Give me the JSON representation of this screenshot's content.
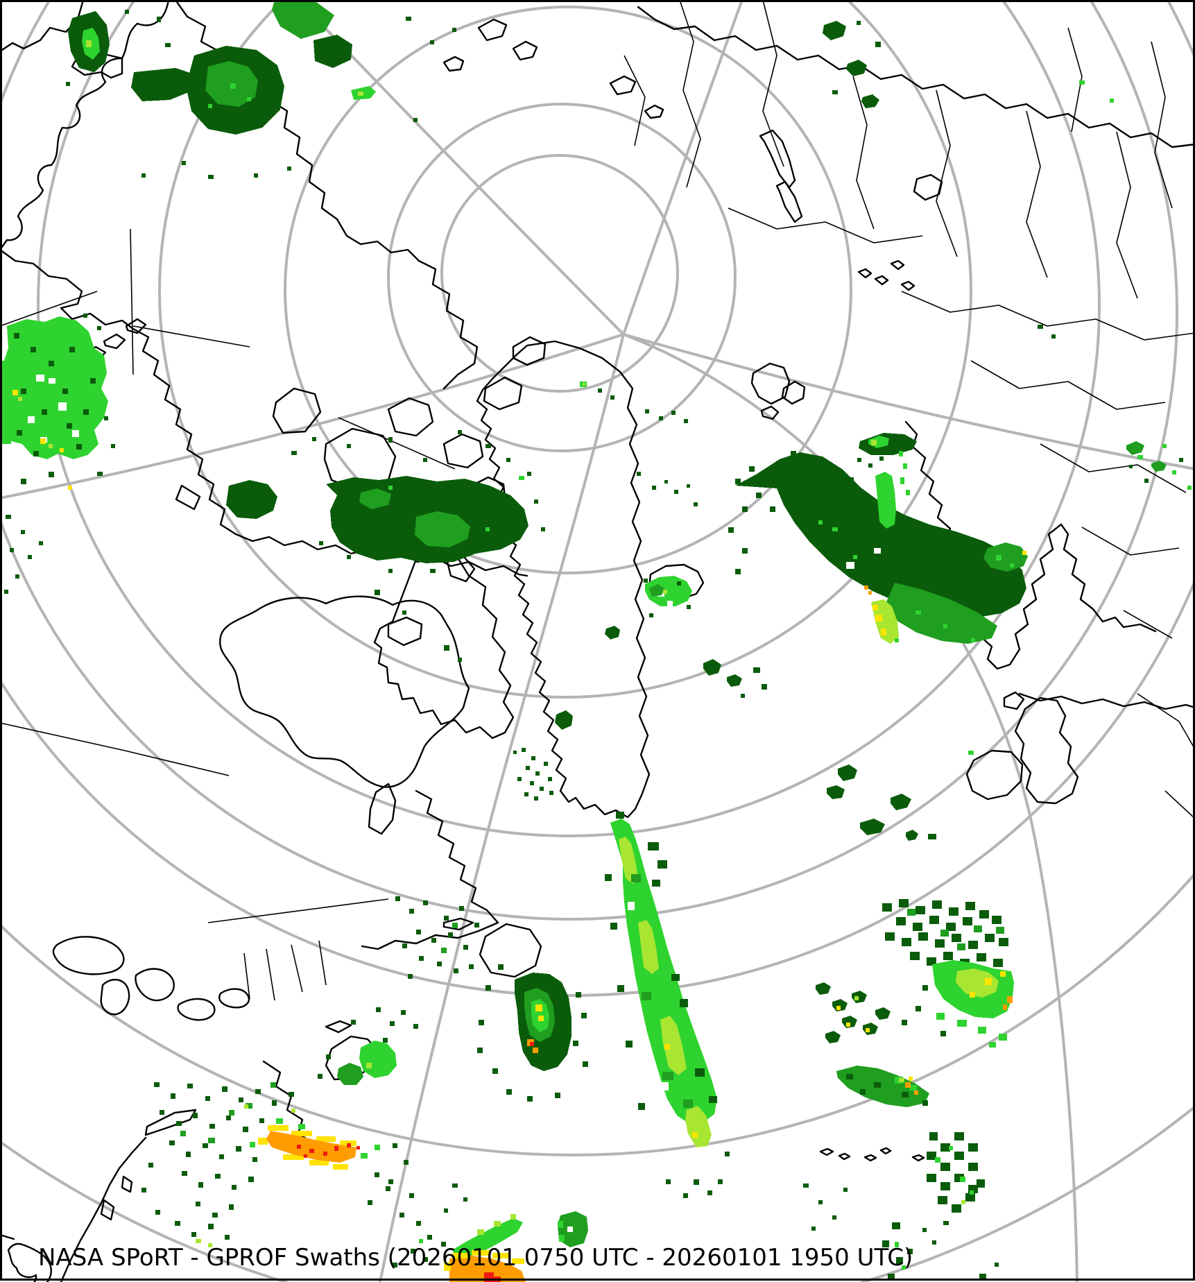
{
  "caption": {
    "text": "NASA SPoRT - GPROF Swaths (20260101 0750 UTC - 20260101 1950 UTC)",
    "color": "#000000"
  },
  "palette": {
    "level1_dark": "#0a5c0a",
    "level2_medium": "#1f9e1f",
    "level3_bright": "#2fd32f",
    "level4_greenyellow": "#a8e632",
    "level5_yellow": "#ffe400",
    "level6_orange": "#ff9d00",
    "level7_red": "#ee1c10"
  },
  "map_lines": {
    "graticule": "#b4b4b4",
    "coastline": "#000000",
    "border": "#000000",
    "frame": "#000000"
  }
}
